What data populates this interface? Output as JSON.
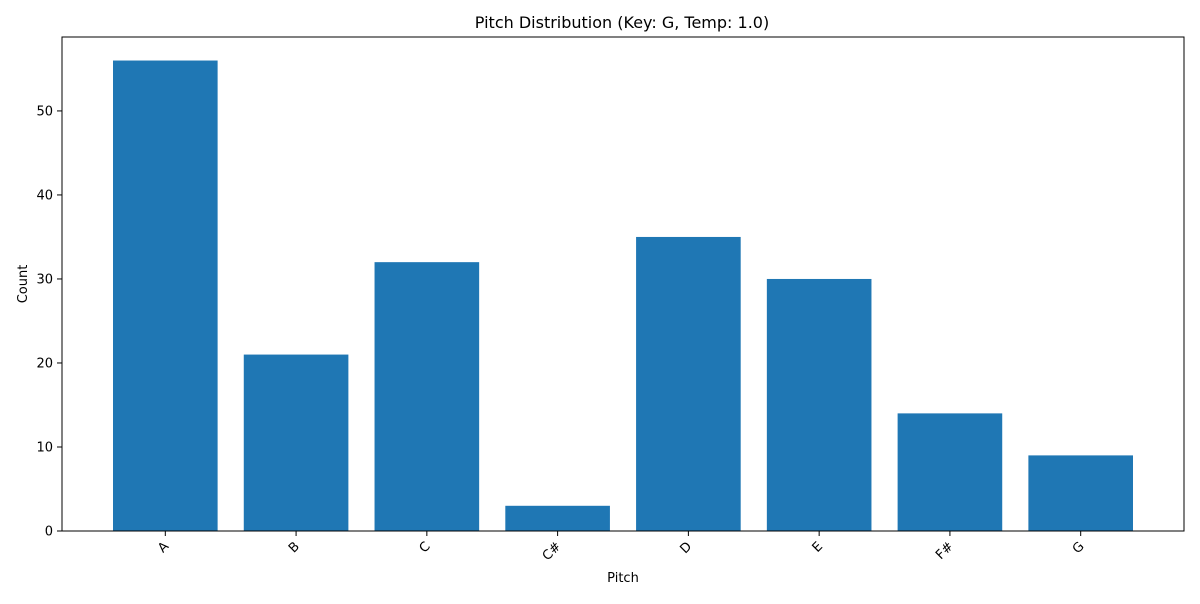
{
  "chart_data": {
    "type": "bar",
    "title": "Pitch Distribution (Key: G, Temp: 1.0)",
    "xlabel": "Pitch",
    "ylabel": "Count",
    "categories": [
      "A",
      "B",
      "C",
      "C#",
      "D",
      "E",
      "F#",
      "G"
    ],
    "values": [
      56,
      21,
      32,
      3,
      35,
      30,
      14,
      9
    ],
    "ylim": [
      0,
      58.8
    ],
    "yticks": [
      0,
      10,
      20,
      30,
      40,
      50
    ],
    "xtick_rotation_deg": 45,
    "grid": false,
    "bar_color": "#1f77b4"
  }
}
